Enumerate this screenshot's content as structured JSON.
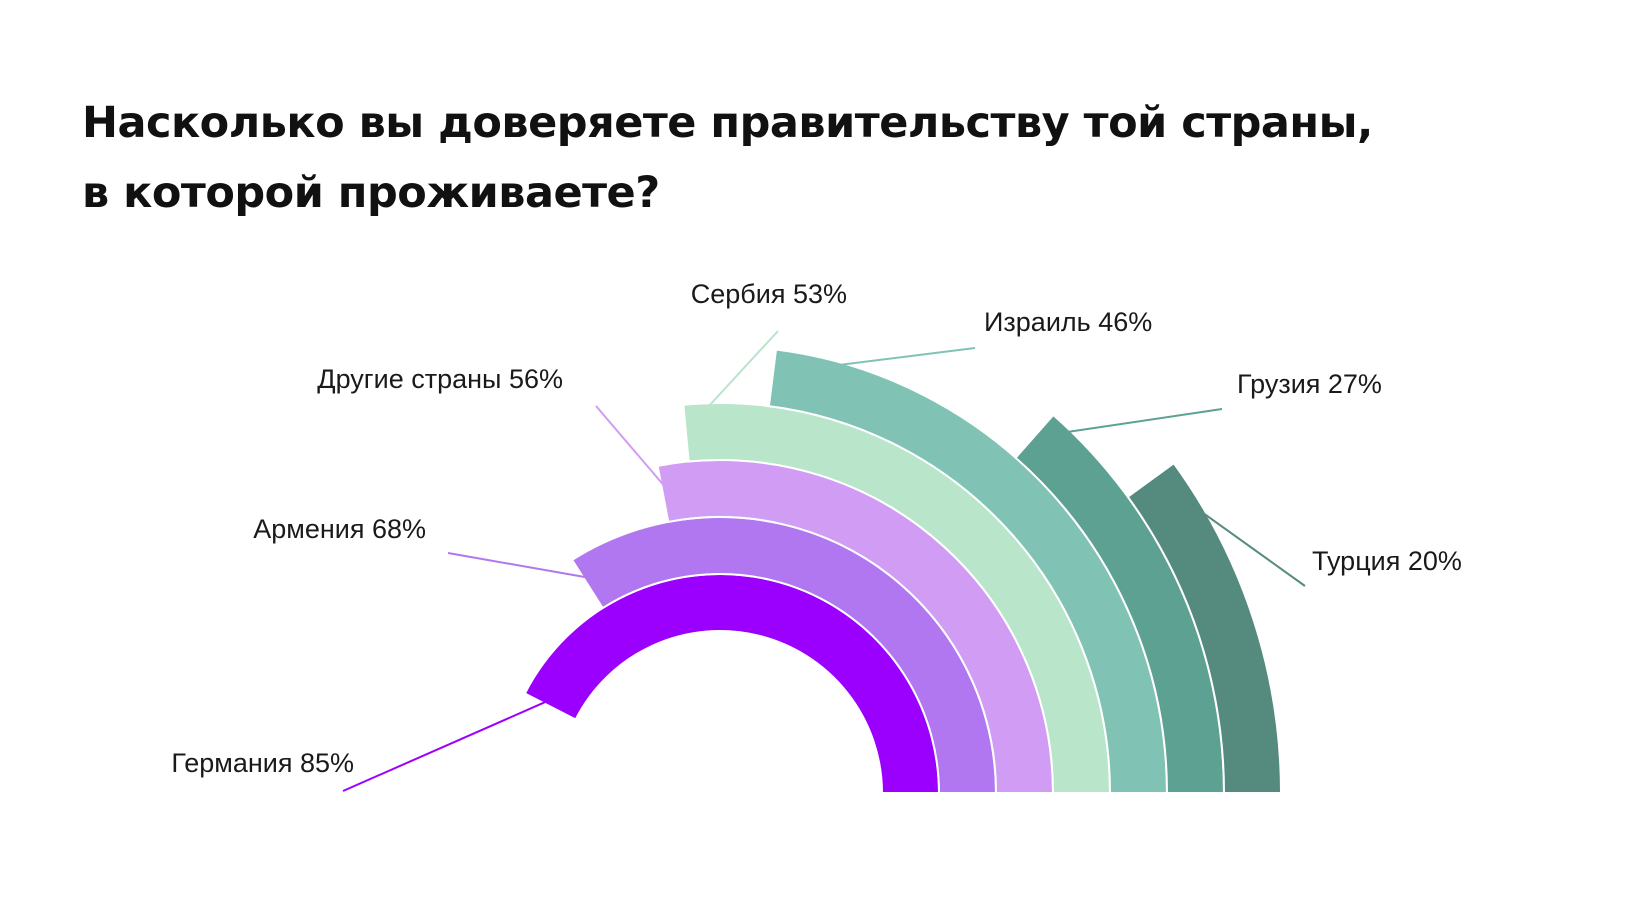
{
  "title_lines": [
    "Насколько вы доверяете правительству той страны,",
    "в которой проживаете?"
  ],
  "chart_data": {
    "type": "radial-bar",
    "title": "Насколько вы доверяете правительству той страны, в которой проживаете?",
    "unit": "%",
    "max": 100,
    "series": [
      {
        "label": "Германия 85%",
        "category": "Германия",
        "value": 85,
        "color": "#9B00FF"
      },
      {
        "label": "Армения 68%",
        "category": "Армения",
        "value": 68,
        "color": "#B077F0"
      },
      {
        "label": "Другие страны 56%",
        "category": "Другие страны",
        "value": 56,
        "color": "#D19DF4"
      },
      {
        "label": "Сербия 53%",
        "category": "Сербия",
        "value": 53,
        "color": "#B9E5CA"
      },
      {
        "label": "Израиль 46%",
        "category": "Израиль",
        "value": 46,
        "color": "#80C3B5"
      },
      {
        "label": "Грузия 27%",
        "category": "Грузия",
        "value": 27,
        "color": "#5DA193"
      },
      {
        "label": "Турция 20%",
        "category": "Турция",
        "value": 20,
        "color": "#558A7E"
      }
    ]
  }
}
